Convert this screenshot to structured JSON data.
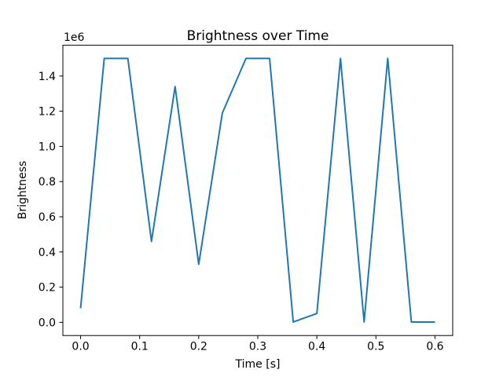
{
  "chart_data": {
    "type": "line",
    "title": "Brightness over Time",
    "xlabel": "Time [s]",
    "ylabel": "Brightness",
    "y_offset_text": "1e6",
    "line_color": "#1f77b4",
    "spine_color": "#000000",
    "background_color": "#ffffff",
    "grid": false,
    "xlim": [
      -0.03,
      0.63
    ],
    "ylim": [
      -75000,
      1575000
    ],
    "xticks": [
      0.0,
      0.1,
      0.2,
      0.3,
      0.4,
      0.5,
      0.6
    ],
    "xtick_labels": [
      "0.0",
      "0.1",
      "0.2",
      "0.3",
      "0.4",
      "0.5",
      "0.6"
    ],
    "yticks": [
      0,
      200000,
      400000,
      600000,
      800000,
      1000000,
      1200000,
      1400000
    ],
    "ytick_labels": [
      "0.0",
      "0.2",
      "0.4",
      "0.6",
      "0.8",
      "1.0",
      "1.2",
      "1.4"
    ],
    "x": [
      0.0,
      0.04,
      0.08,
      0.12,
      0.16,
      0.2,
      0.24,
      0.28,
      0.32,
      0.36,
      0.4,
      0.44,
      0.48,
      0.52,
      0.56,
      0.6
    ],
    "y": [
      80000,
      1500000,
      1500000,
      460000,
      1340000,
      330000,
      1190000,
      1500000,
      1500000,
      2000,
      50000,
      1500000,
      2000,
      1500000,
      2000,
      2000
    ]
  }
}
